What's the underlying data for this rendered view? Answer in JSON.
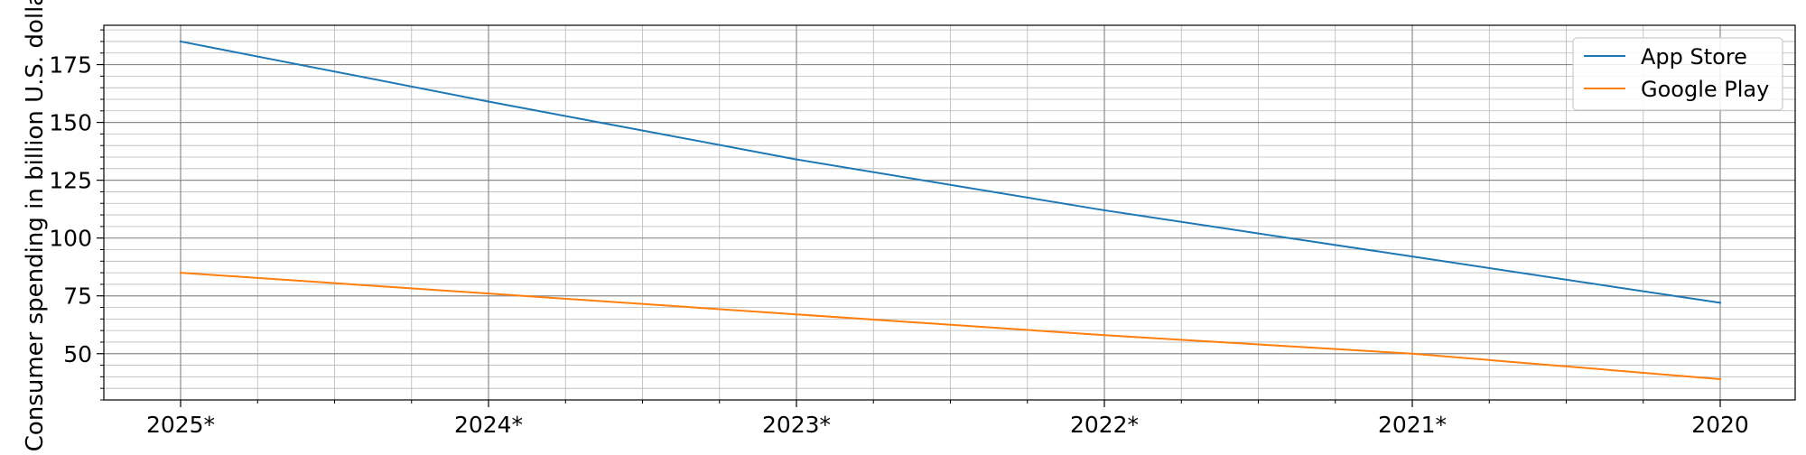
{
  "chart_data": {
    "type": "line",
    "title": "",
    "xlabel": "",
    "ylabel": "Consumer spending in billion U.S. dolla",
    "categories": [
      "2025*",
      "2024*",
      "2023*",
      "2022*",
      "2021*",
      "2020"
    ],
    "series": [
      {
        "name": "App Store",
        "values": [
          185,
          159,
          134,
          112,
          92,
          72
        ],
        "color": "#1f77b4"
      },
      {
        "name": "Google Play",
        "values": [
          85,
          76,
          67,
          58,
          50,
          39
        ],
        "color": "#ff7f0e"
      }
    ],
    "ylim": [
      30,
      192
    ],
    "y_ticks": [
      50,
      75,
      100,
      125,
      150,
      175
    ],
    "grid": "major and minor",
    "legend": "top-right"
  }
}
